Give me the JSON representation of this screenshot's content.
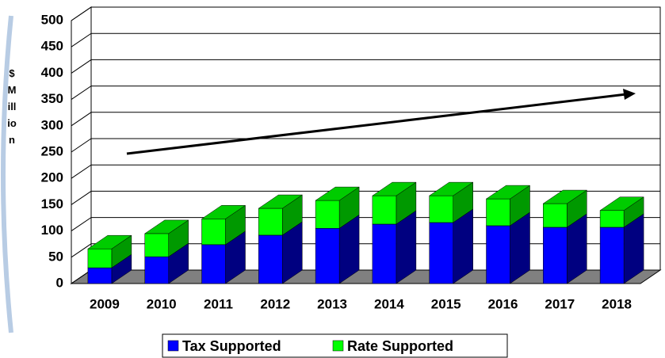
{
  "chart_data": {
    "type": "bar",
    "stacked": true,
    "ylabel": "$ Million",
    "categories": [
      "2009",
      "2010",
      "2011",
      "2012",
      "2013",
      "2014",
      "2015",
      "2016",
      "2017",
      "2018"
    ],
    "series": [
      {
        "name": "Tax Supported",
        "color": "#0000ff",
        "values": [
          30,
          51,
          74,
          92,
          105,
          113,
          116,
          110,
          107,
          107
        ]
      },
      {
        "name": "Rate Supported",
        "color": "#00ff00",
        "values": [
          36,
          44,
          49,
          51,
          53,
          54,
          51,
          51,
          45,
          32
        ]
      }
    ],
    "ylim": [
      0,
      500
    ],
    "yticks": [
      0,
      50,
      100,
      150,
      200,
      250,
      300,
      350,
      400,
      450,
      500
    ],
    "grid": true
  }
}
